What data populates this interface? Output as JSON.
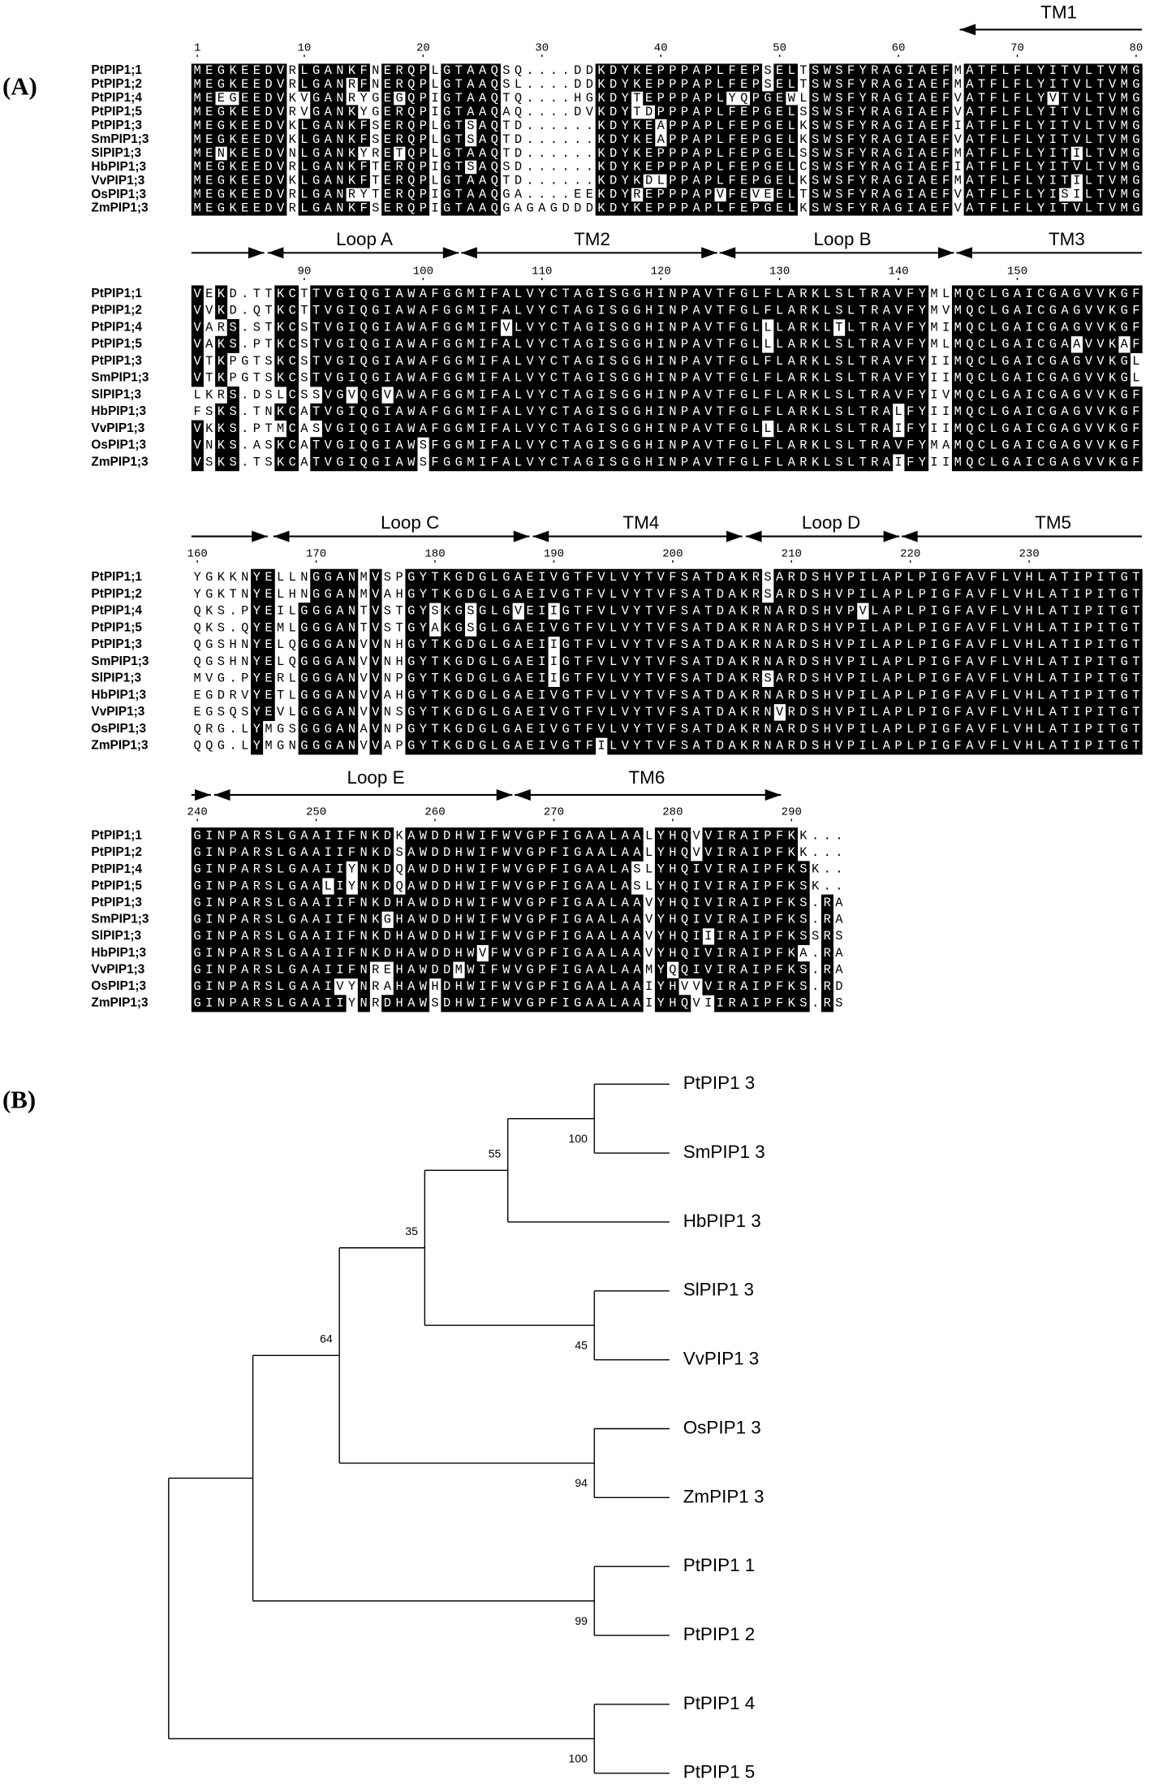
{
  "panels": [
    "(A)",
    "(B)"
  ],
  "alignment": {
    "region_labels": [
      [
        "TM1"
      ],
      [
        "Loop A",
        "TM2",
        "Loop B",
        "TM3"
      ],
      [
        "Loop C",
        "TM4",
        "Loop D",
        "TM5"
      ],
      [
        "Loop E",
        "TM6"
      ]
    ],
    "position_ticks": [
      [
        1,
        10,
        20,
        30,
        40,
        50,
        60,
        70,
        80
      ],
      [
        90,
        100,
        110,
        120,
        130,
        140,
        150
      ],
      [
        160,
        170,
        180,
        190,
        200,
        210,
        220,
        230
      ],
      [
        240,
        250,
        260,
        270,
        280,
        290
      ]
    ],
    "sequences": [
      {
        "name": "PtPIP1;1",
        "blocks": [
          "MEGKEEDVRLGANKFNERQPLGTAAQSQ....DDKDYKEPPPAPLFEPSELTSWSFYRAGIAEFMATFLFLYITVLTVMG",
          "VEKD.TTKCTTVGIQGIAWAFGGMIFALVYCTAGISGGHINPAVTFGLFLARKLSLTRAVFYMLMQCLGAICGAGVVKGF",
          "YGKKNYELLNGGANMVSPGYTKGDGLGAEIVGTFVLVYTVFSATDAKRSARDSHVPILAPLPIGFAVFLVHLATIPITGT",
          "GINPARSLGAAIIFNKDKAWDDHWIFWVGPFIGAALAALYHQVVIRAIPFKK..."
        ]
      },
      {
        "name": "PtPIP1;2",
        "blocks": [
          "MEGKEEDVRLGANRFNERQPLGTAAQSL....DDKDYKEPPPAPLFEPSELTSWSFYRAGIAEFMATFLFLYITVLTVMG",
          "VVKD.QTKCTTVGIQGIAWAFGGMIFALVYCTAGISGGHINPAVTFGLFLARKLSLTRAVFYMVMQCLGAICGAGVVKGF",
          "YGKTNYELHNGGANMVAHGYTKGDGLGAEIVGTFVLVYTVFSATDAKRSARDSHVPILAPLPIGFAVFLVHLATIPITGT",
          "GINPARSLGAAIIFNKDSAWDDHWIFWVGPFIGAALAALYHQVVIRAIPFKK..."
        ]
      },
      {
        "name": "PtPIP1;4",
        "blocks": [
          "MEEGEEDVKVGANRYGEGQPIGTAAQTQ....HGKDYTEPPPAPLYQPGEWLSWSFYRAGIAEFVATFLFLYVTVLTVMG",
          "VARS.STKCSTVGIQGIAWAFGGMIFVLVYCTAGISGGHINPAVTFGLLLARKLTLTRAVFYMIMQCLGAICGAGVVKGF",
          "QKS.PYEILGGGANTVSTGYSKGSGLGVEIIGTFVLVYTVFSATDAKRNARDSHVPVLAPLPIGFAVFLVHLATIPITGT",
          "GINPARSLGAAIIYNKDQAWDDHWIFWVGPFIGAALASLYHQIVIRAIPFKSK.."
        ]
      },
      {
        "name": "PtPIP1;5",
        "blocks": [
          "MEGKEEDVRVGANKYGERQPIGTAAQAQ....DVKDYTDPPPAPLFEPGELSSWSFYRAGIAEFVATFLFLYITVLTVMG",
          "VAKS.PTKCSTVGIQGIAWAFGGMIFALVYCTAGISGGHINPAVTFGLLLARKLSLTRAVFYMLMQCLGAICGAAVVKAF",
          "QKS.QYEMLGGGANTVSTGYAKGSGLGAEIVGTFVLVYTVFSATDAKRNARDSHVPILAPLPIGFAVFLVHLATIPITGT",
          "GINPARSLGAALIYNKDQAWDDHWIFWVGPFIGAALASLYHQIVIRAIPFKSK.."
        ]
      },
      {
        "name": "PtPIP1;3",
        "blocks": [
          "MEGKEEDVKLGANKFSERQPLGTSAQTD......KDYKEAPPAPLFEPGELKSWSFYRAGIAEFIATFLFLYITVLTVMG",
          "VTKPGTSKCSTVGIQGIAWAFGGMIFALVYCTAGISGGHINPAVTFGLFLARKLSLTRAVFYIIMQCLGAICGAGVVKGL",
          "QGSHNYELQGGGANVVNHGYTKGDGLGAEIIGTFVLVYTVFSATDAKRNARDSHVPILAPLPIGFAVFLVHLATIPITGT",
          "GINPARSLGAAIIFNKDHAWDDHWIFWVGPFIGAALAAVYHQIVIRAIPFKS.RA"
        ]
      },
      {
        "name": "SmPIP1;3",
        "blocks": [
          "MEGKEEDVKLGANKFSERQPLGTSAQTD......KDYKEAPPAPLFEPGELKSWSFYRAGIAEFVATFLFLYITVLTVMG",
          "VTKPGTSKCSTVGIQGIAWAFGGMIFALVYCTAGISGGHINPAVTFGLFLARKLSLTRAVFYIIMQCLGAICGAGVVKGL",
          "QGSHNYELQGGGANVVNHGYTKGDGLGAEIIGTFVLVYTVFSATDAKRNARDSHVPILAPLPIGFAVFLVHLATIPITGT",
          "GINPARSLGAAIIFNKGHAWDDHWIFWVGPFIGAALAAVYHQIVIRAIPFKS.RA"
        ]
      },
      {
        "name": "SlPIP1;3",
        "blocks": [
          "MENKEEDVNLGANKYRETQPLGTAAQTD......KDYKEPPPAPLFEPGELSSWSFYRAGIAEFMATFLFLYITILTVMG",
          "LKRS.DSLCSSVGVQGVAWAFGGMIFALVYCTAGISGGHINPAVTFGLFLARKLSLTRAVFYIVMQCLGAICGAGVVKGF",
          "MVG.PYERLGGGANVVNPGYTKGDGLGAEIIGTFVLVYTVFSATDAKRSARDSHVPILAPLPIGFAVFLVHLATIPITGT",
          "GINPARSLGAAIIFNKDHAWDDHWIFWVGPFIGAALAAVYHQIIIRAIPFKSSRS"
        ]
      },
      {
        "name": "HbPIP1;3",
        "blocks": [
          "MEGKEEDVRLGANKFTERQPIGTSAQSD......KDYKEPPPAPLFEPGELCSWSFYRAGIAEFIATFLFLYITVLTVMG",
          "FSKS.TNKCATVGIQGIAWAFGGMIFALVYCTAGISGGHINPAVTFGLFLARKLSLTRALFYIIMQCLGAICGAGVVKGF",
          "EGDRVYETLGGGANVVAHGYTKGDGLGAEIVGTFVLVYTVFSATDAKRNARDSHVPILAPLPIGFAVFLVHLATIPITGT",
          "GINPARSLGAAIIFNKDHAWDDHWVFWVGPFIGAALAAVYHQIVIRAIPFKA.RA"
        ]
      },
      {
        "name": "VvPIP1;3",
        "blocks": [
          "MEGKEEDVKLGANKFTERQPLGTAAQTD......KDYKDLPPAPLFEPGELKSWSFYRAGIAEFMATFLFLYITILTVMG",
          "VKKS.PTMCASVGIQGIAWAFGGMIFALVYCTAGISGGHINPAVTFGLLLARKLSLTRAIFYIIMQCLGAICGAGVVKGF",
          "EGSQSYEVLGGGANVVNSGYTKGDGLGAEIVGTFVLVYTVFSATDAKRNVRDSHVPILAPLPIGFAVFLVHLATIPITGT",
          "GINPARSLGAAIIFNREHAWDDMWIFWVGPFIGAALAAMYQQIVIRAIPFKS.RA"
        ]
      },
      {
        "name": "OsPIP1;3",
        "blocks": [
          "MEGKEEDVRLGANRYTERQPIGTAAQGA....EEKDYREPPPAPVFEVEELTSWSFYRAGIAEFVATFLFLYISILTVMG",
          "VNKS.ASKCATVGIQGIAWSFGGMIFALVYCTAGISGGHINPAVTFGLFLARKLSLTRAVFYMAMQCLGAICGAGVVKGF",
          "QRG.LYMGSGGGANAVNPGYTKGDGLGAEIVGTFVLVYTVFSATDAKRNARDSHVPILAPLPIGFAVFLVHLATIPITGT",
          "GINPARSLGAAIVYNRAHAWHDHWIFWVGPFIGAALAAIYHVVVIRAIPFKS.RD"
        ]
      },
      {
        "name": "ZmPIP1;3",
        "blocks": [
          "MEGKEEDVRLGANKFSERQPIGTAAQGAGAGDDDKDYKEPPPAPLFEPGELKSWSFYRAGIAEFVATFLFLYITVLTVMG",
          "VSKS.TSKCATVGIQGIAWSFGGMIFALVYCTAGISGGHINPAVTFGLFLARKLSLTRAIFYIIMQCLGAICGAGVVKGF",
          "QQG.LYMGNGGGANVVAPGYTKGDGLGAEIVGTFILVYTVFSATDAKRNARDSHVPILAPLPIGFAVFLVHLATIPITGT",
          "GINPARSLGAAIIYNRDHAWSDHWIFWVGPFIGAALAAIYHQVIIRAIPFKS.RS"
        ]
      }
    ]
  },
  "tree": {
    "children": [
      {
        "children": [
          {
            "support": 64,
            "children": [
              {
                "support": 35,
                "children": [
                  {
                    "support": 55,
                    "children": [
                      {
                        "support": 100,
                        "children": [
                          {
                            "label": "PtPIP1 3"
                          },
                          {
                            "label": "SmPIP1 3"
                          }
                        ]
                      },
                      {
                        "label": "HbPIP1 3"
                      }
                    ]
                  },
                  {
                    "support": 45,
                    "children": [
                      {
                        "label": "SlPIP1 3"
                      },
                      {
                        "label": "VvPIP1 3"
                      }
                    ]
                  }
                ]
              },
              {
                "support": 94,
                "children": [
                  {
                    "label": "OsPIP1 3"
                  },
                  {
                    "label": "ZmPIP1 3"
                  }
                ]
              }
            ]
          },
          {
            "support": 99,
            "children": [
              {
                "label": "PtPIP1 1"
              },
              {
                "label": "PtPIP1 2"
              }
            ]
          }
        ]
      },
      {
        "support": 100,
        "children": [
          {
            "label": "PtPIP1 4"
          },
          {
            "label": "PtPIP1 5"
          }
        ]
      }
    ]
  }
}
